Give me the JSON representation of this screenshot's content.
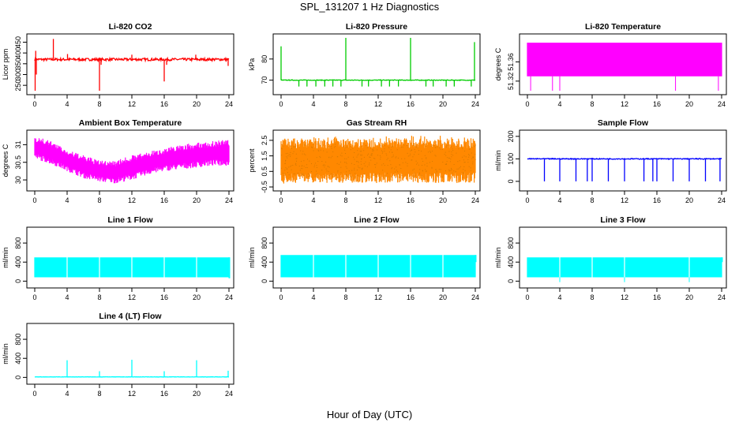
{
  "title": "SPL_131207  1 Hz Diagnostics",
  "xlabel": "Hour of Day (UTC)",
  "chart_data": [
    {
      "type": "line",
      "title": "Li-820 CO2",
      "ylabel": "Licor ppm",
      "color": "#ff0000",
      "xlim": [
        0,
        24
      ],
      "xticks": [
        0,
        4,
        8,
        12,
        16,
        20,
        24
      ],
      "ylim": [
        225,
        470
      ],
      "yticks": [
        250,
        300,
        350,
        400,
        450
      ],
      "series": [
        {
          "baseline": 370,
          "noise": 6,
          "spikes": [
            {
              "x": 0.05,
              "y": 225
            },
            {
              "x": 0.12,
              "y": 410
            },
            {
              "x": 0.2,
              "y": 300
            },
            {
              "x": 2.3,
              "y": 465
            },
            {
              "x": 4.05,
              "y": 395
            },
            {
              "x": 8.0,
              "y": 225
            },
            {
              "x": 8.2,
              "y": 345
            },
            {
              "x": 12.0,
              "y": 392
            },
            {
              "x": 16.0,
              "y": 268
            },
            {
              "x": 16.3,
              "y": 345
            },
            {
              "x": 19.9,
              "y": 392
            },
            {
              "x": 23.9,
              "y": 340
            }
          ]
        }
      ]
    },
    {
      "type": "line",
      "title": "Li-820 Pressure",
      "ylabel": "kPa",
      "color": "#00cc00",
      "xlim": [
        0,
        24
      ],
      "xticks": [
        0,
        4,
        8,
        12,
        16,
        20,
        24
      ],
      "ylim": [
        65,
        90
      ],
      "yticks": [
        70,
        80
      ],
      "series": [
        {
          "baseline": 70,
          "noise": 0.15,
          "spikes": [
            {
              "x": 0.0,
              "y": 86
            },
            {
              "x": 8.0,
              "y": 90
            },
            {
              "x": 16.0,
              "y": 90
            },
            {
              "x": 23.9,
              "y": 88
            },
            {
              "x": 2.2,
              "y": 67
            },
            {
              "x": 3.2,
              "y": 67
            },
            {
              "x": 4.3,
              "y": 67
            },
            {
              "x": 5.4,
              "y": 67
            },
            {
              "x": 6.4,
              "y": 67
            },
            {
              "x": 7.4,
              "y": 67
            },
            {
              "x": 10.0,
              "y": 67
            },
            {
              "x": 10.8,
              "y": 67
            },
            {
              "x": 12.4,
              "y": 67
            },
            {
              "x": 13.4,
              "y": 67
            },
            {
              "x": 14.5,
              "y": 67
            },
            {
              "x": 17.9,
              "y": 67
            },
            {
              "x": 18.8,
              "y": 67
            },
            {
              "x": 20.4,
              "y": 67
            },
            {
              "x": 21.4,
              "y": 67
            },
            {
              "x": 23.5,
              "y": 67
            }
          ]
        }
      ]
    },
    {
      "type": "area",
      "title": "Li-820 Temperature",
      "ylabel": "degrees C",
      "color": "#ff00ff",
      "xlim": [
        0,
        24
      ],
      "xticks": [
        0,
        4,
        8,
        12,
        16,
        20,
        24
      ],
      "ylim": [
        51.3,
        51.41
      ],
      "yticks": [
        51.32,
        51.36
      ],
      "series": [
        {
          "band": [
            51.33,
            51.4
          ],
          "dips": [
            0.4,
            3.1,
            4.0,
            18.3,
            23.6
          ],
          "dip_to": 51.3
        }
      ]
    },
    {
      "type": "area",
      "title": "Ambient Box Temperature",
      "ylabel": "degrees C",
      "color": "#ff00ff",
      "xlim": [
        0,
        24
      ],
      "xticks": [
        0,
        4,
        8,
        12,
        16,
        20,
        24
      ],
      "ylim": [
        29.8,
        31.3
      ],
      "yticks": [
        30.0,
        30.5,
        31.0
      ],
      "series": [
        {
          "envelope": [
            {
              "x": 0,
              "lo": 30.6,
              "hi": 31.25
            },
            {
              "x": 2,
              "lo": 30.45,
              "hi": 31.1
            },
            {
              "x": 4,
              "lo": 30.25,
              "hi": 30.85
            },
            {
              "x": 6,
              "lo": 30.05,
              "hi": 30.7
            },
            {
              "x": 8,
              "lo": 29.95,
              "hi": 30.55
            },
            {
              "x": 10,
              "lo": 29.9,
              "hi": 30.55
            },
            {
              "x": 12,
              "lo": 30.0,
              "hi": 30.7
            },
            {
              "x": 14,
              "lo": 30.15,
              "hi": 30.8
            },
            {
              "x": 16,
              "lo": 30.25,
              "hi": 30.9
            },
            {
              "x": 18,
              "lo": 30.3,
              "hi": 31.0
            },
            {
              "x": 20,
              "lo": 30.35,
              "hi": 31.05
            },
            {
              "x": 22,
              "lo": 30.4,
              "hi": 31.1
            },
            {
              "x": 24,
              "lo": 30.4,
              "hi": 31.15
            }
          ]
        }
      ]
    },
    {
      "type": "area",
      "title": "Gas Stream RH",
      "ylabel": "percent",
      "color": "#ff8800",
      "xlim": [
        0,
        24
      ],
      "xticks": [
        0,
        4,
        8,
        12,
        16,
        20,
        24
      ],
      "ylim": [
        -0.5,
        2.9
      ],
      "yticks": [
        -0.5,
        0.5,
        1.5,
        2.5
      ],
      "series": [
        {
          "band": [
            0.1,
            2.3
          ],
          "extremes": [
            -0.3,
            2.8
          ]
        }
      ]
    },
    {
      "type": "line",
      "title": "Sample Flow",
      "ylabel": "ml/min",
      "color": "#0000ff",
      "xlim": [
        0,
        24
      ],
      "xticks": [
        0,
        4,
        8,
        12,
        16,
        20,
        24
      ],
      "ylim": [
        -25,
        210
      ],
      "yticks": [
        0,
        100,
        200
      ],
      "series": [
        {
          "baseline": 100,
          "noise": 2,
          "spikes": [
            {
              "x": 2.1,
              "y": 0
            },
            {
              "x": 4.0,
              "y": 0
            },
            {
              "x": 6.0,
              "y": 0
            },
            {
              "x": 7.4,
              "y": 0
            },
            {
              "x": 8.0,
              "y": 0
            },
            {
              "x": 10.0,
              "y": 0
            },
            {
              "x": 12.0,
              "y": 0
            },
            {
              "x": 14.4,
              "y": 0
            },
            {
              "x": 15.5,
              "y": 0
            },
            {
              "x": 16.0,
              "y": 0
            },
            {
              "x": 18.0,
              "y": 0
            },
            {
              "x": 20.0,
              "y": 0
            },
            {
              "x": 22.0,
              "y": 0
            },
            {
              "x": 23.8,
              "y": 0
            }
          ]
        }
      ]
    },
    {
      "type": "area",
      "title": "Line 1 Flow",
      "ylabel": "ml/min",
      "color": "#00ffff",
      "xlim": [
        0,
        24
      ],
      "xticks": [
        0,
        4,
        8,
        12,
        16,
        20,
        24
      ],
      "ylim": [
        -60,
        1050
      ],
      "yticks": [
        0,
        400,
        800
      ],
      "series": [
        {
          "band": [
            80,
            500
          ],
          "gaps": [
            4.0,
            8.0,
            12.0,
            16.0,
            20.0
          ],
          "end_dip": 60
        }
      ]
    },
    {
      "type": "area",
      "title": "Line 2 Flow",
      "ylabel": "ml/min",
      "color": "#00ffff",
      "xlim": [
        0,
        24
      ],
      "xticks": [
        0,
        4,
        8,
        12,
        16,
        20,
        24
      ],
      "ylim": [
        -60,
        1050
      ],
      "yticks": [
        0,
        400,
        800
      ],
      "series": [
        {
          "band": [
            80,
            550
          ],
          "gaps": [
            4.0,
            8.0,
            12.0,
            16.0,
            20.0
          ],
          "end_dip": 400
        }
      ]
    },
    {
      "type": "area",
      "title": "Line 3 Flow",
      "ylabel": "ml/min",
      "color": "#00ffff",
      "xlim": [
        0,
        24
      ],
      "xticks": [
        0,
        4,
        8,
        12,
        16,
        20,
        24
      ],
      "ylim": [
        -60,
        1050
      ],
      "yticks": [
        0,
        400,
        800
      ],
      "series": [
        {
          "band": [
            80,
            500
          ],
          "gaps": [
            4.0,
            8.0,
            12.0,
            20.0
          ],
          "dips": [
            4.0,
            12.0,
            20.0
          ],
          "dip_to": -20,
          "end_dip": 400
        }
      ]
    },
    {
      "type": "line",
      "title": "Line 4 (LT) Flow",
      "ylabel": "ml/min",
      "color": "#00ffff",
      "xlim": [
        0,
        24
      ],
      "xticks": [
        0,
        4,
        8,
        12,
        16,
        20,
        24
      ],
      "ylim": [
        -60,
        1050
      ],
      "yticks": [
        0,
        400,
        800
      ],
      "series": [
        {
          "baseline": 10,
          "noise": 3,
          "spikes": [
            {
              "x": 4.0,
              "y": 360
            },
            {
              "x": 8.0,
              "y": 130
            },
            {
              "x": 12.0,
              "y": 370
            },
            {
              "x": 16.0,
              "y": 130
            },
            {
              "x": 20.0,
              "y": 360
            },
            {
              "x": 23.9,
              "y": 140
            }
          ]
        }
      ]
    }
  ]
}
